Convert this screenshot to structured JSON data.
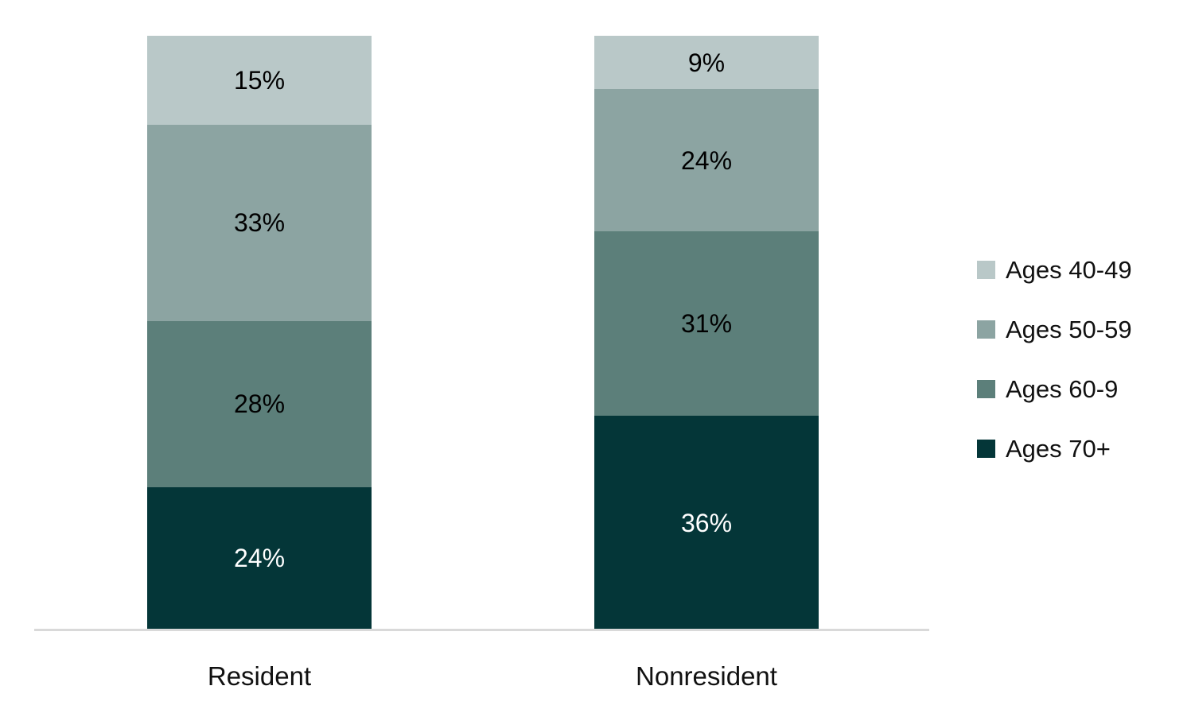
{
  "chart_data": {
    "type": "bar",
    "stacked": true,
    "orientation": "vertical",
    "unit": "%",
    "value_total": 100,
    "grid": false,
    "legend_position": "right",
    "axis_line_color": "#d9d9d9",
    "categories": [
      "Resident",
      "Nonresident"
    ],
    "series": [
      {
        "name": "Ages 40-49",
        "color": "#b9c8c8",
        "label_color": "#000000",
        "values": [
          15,
          9
        ],
        "labels": [
          "15%",
          "9%"
        ]
      },
      {
        "name": "Ages 50-59",
        "color": "#8ca4a2",
        "label_color": "#000000",
        "values": [
          33,
          24
        ],
        "labels": [
          "33%",
          "24%"
        ]
      },
      {
        "name": "Ages 60-9",
        "color": "#5c7f7a",
        "label_color": "#000000",
        "values": [
          28,
          31
        ],
        "labels": [
          "28%",
          "31%"
        ]
      },
      {
        "name": "Ages 70+",
        "color": "#043638",
        "label_color": "#ffffff",
        "values": [
          24,
          36
        ],
        "labels": [
          "24%",
          "36%"
        ]
      }
    ]
  },
  "legend": {
    "items": [
      "Ages 40-49",
      "Ages 50-59",
      "Ages 60-9",
      "Ages 70+"
    ]
  }
}
